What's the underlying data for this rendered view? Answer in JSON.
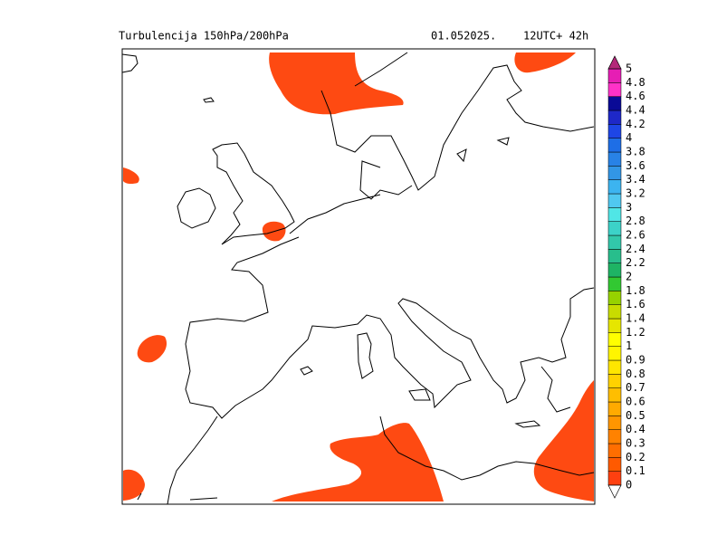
{
  "header": {
    "title": "Turbulencija 150hPa/200hPa",
    "date": "01.052025.",
    "time": "12UTC+ 42h"
  },
  "legend": {
    "labels": [
      "0",
      "0.1",
      "0.2",
      "0.3",
      "0.4",
      "0.5",
      "0.6",
      "0.7",
      "0.8",
      "0.9",
      "1",
      "1.2",
      "1.4",
      "1.6",
      "1.8",
      "2",
      "2.2",
      "2.4",
      "2.6",
      "2.8",
      "3",
      "3.2",
      "3.4",
      "3.6",
      "3.8",
      "4",
      "4.2",
      "4.4",
      "4.6",
      "4.8",
      "5"
    ],
    "colors": [
      "#fe4010",
      "#ff5a00",
      "#ff6e00",
      "#ff8200",
      "#ff9600",
      "#ffaa00",
      "#ffbe00",
      "#ffd200",
      "#ffe600",
      "#fff500",
      "#ffff00",
      "#e6e600",
      "#c8dc00",
      "#96d200",
      "#32c832",
      "#1eb464",
      "#28be8c",
      "#32c8aa",
      "#3cd2c8",
      "#50e6e6",
      "#50c8f0",
      "#3cb4f0",
      "#3296e6",
      "#2882e6",
      "#1e6ee6",
      "#1e46e6",
      "#1e28c8",
      "#0a0a96",
      "#ff32c8",
      "#e61eb4"
    ],
    "under_color": "#ffffff",
    "over_color": "#b4287a"
  }
}
